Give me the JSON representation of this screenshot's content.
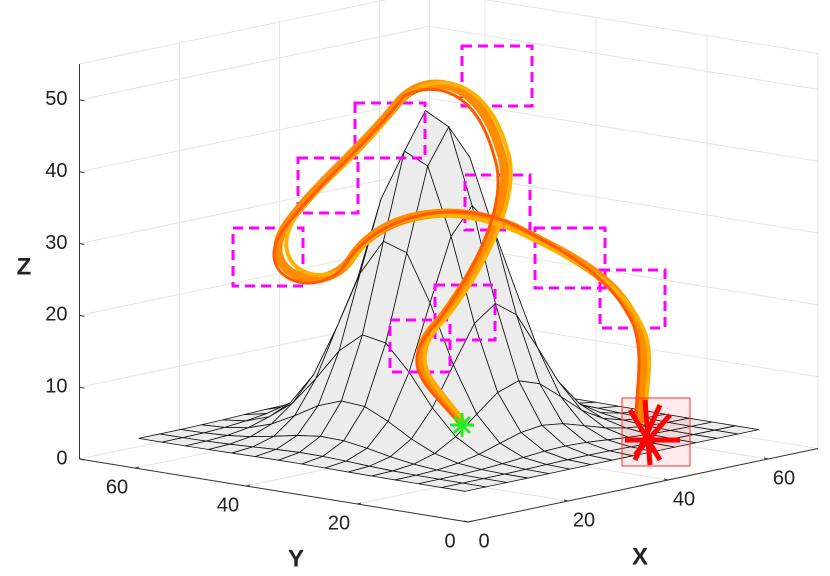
{
  "chart_data": {
    "type": "3d-trajectory",
    "xlabel": "X",
    "ylabel": "Y",
    "zlabel": "Z",
    "xlim": [
      0,
      70
    ],
    "ylim": [
      0,
      70
    ],
    "zlim": [
      0,
      55
    ],
    "xticks": [
      0,
      20,
      40,
      60
    ],
    "yticks": [
      0,
      20,
      40,
      60
    ],
    "zticks": [
      0,
      10,
      20,
      30,
      40,
      50
    ],
    "grid": true
  }
}
